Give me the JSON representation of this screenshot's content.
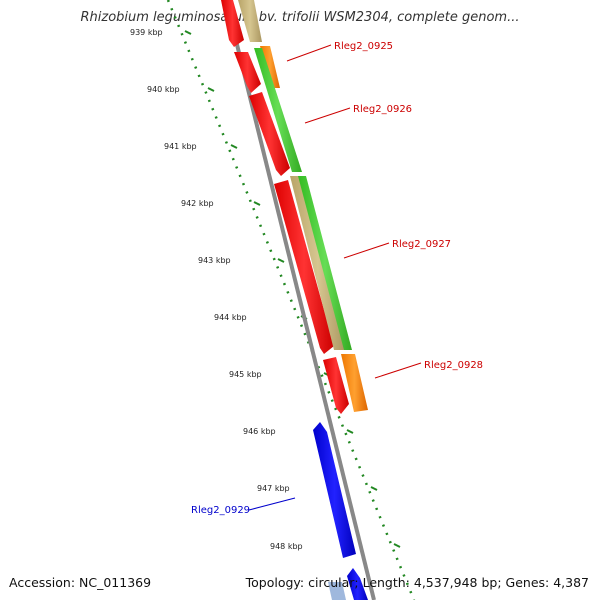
{
  "title": "Rhizobium leguminosarum bv. trifolii WSM2304, complete genom...",
  "footer": {
    "accession": "Accession: NC_011369",
    "stats": "Topology: circular; Length: 4,537,948 bp; Genes: 4,387"
  },
  "scale": {
    "ticks": [
      "939 kbp",
      "940 kbp",
      "941 kbp",
      "942 kbp",
      "943 kbp",
      "944 kbp",
      "945 kbp",
      "946 kbp",
      "947 kbp",
      "948 kbp"
    ]
  },
  "genes": [
    {
      "name": "Rleg2_0925",
      "color": "#cc0000"
    },
    {
      "name": "Rleg2_0926",
      "color": "#cc0000"
    },
    {
      "name": "Rleg2_0927",
      "color": "#cc0000"
    },
    {
      "name": "Rleg2_0928",
      "color": "#cc0000"
    },
    {
      "name": "Rleg2_0929",
      "color": "#0000cc"
    }
  ],
  "colors": {
    "forward_cds": "#ff0000",
    "reverse_cds": "#0000ff",
    "cog_green": "#44cc33",
    "cog_orange": "#ff8800",
    "cog_tan": "#c8b47a",
    "backbone": "#888888",
    "tick_color": "#228822"
  }
}
